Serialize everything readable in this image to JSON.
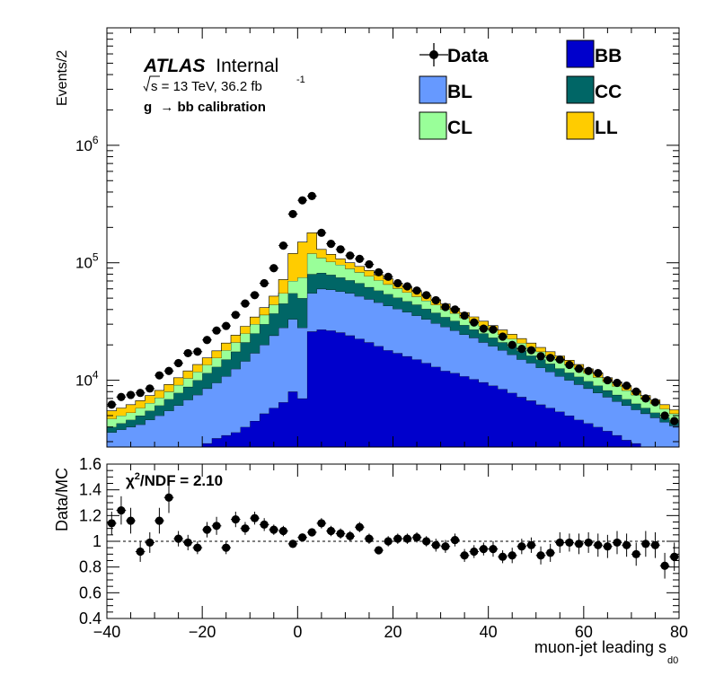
{
  "chart_data": [
    {
      "type": "area",
      "role": "main-stacked-histogram",
      "ylabel": "Events/2",
      "log_scale_y": true,
      "xlim": [
        -40,
        80
      ],
      "ylim": [
        2700,
        10000000
      ],
      "y_ticks": [
        {
          "value": 10000,
          "label_base": "10",
          "label_exp": "4"
        },
        {
          "value": 100000,
          "label_base": "10",
          "label_exp": "5"
        },
        {
          "value": 1000000,
          "label_base": "10",
          "label_exp": "6"
        }
      ],
      "annotations": {
        "brand": "ATLAS",
        "status": "Internal",
        "energy_sqrt": "s",
        "energy_text": " = 13 TeV, 36.2 fb",
        "lumi_exp": "-1",
        "selection_prefix": "g",
        "selection_arrow": "→",
        "selection_suffix": " bb calibration"
      },
      "legend_placement": "top-right",
      "legend": [
        {
          "key": "data",
          "label": "Data",
          "color": "#000000",
          "marker": "point"
        },
        {
          "key": "BB",
          "label": "BB",
          "color": "#0000cc",
          "marker": "box"
        },
        {
          "key": "BL",
          "label": "BL",
          "color": "#6699ff",
          "marker": "box"
        },
        {
          "key": "CC",
          "label": "CC",
          "color": "#006666",
          "marker": "box"
        },
        {
          "key": "CL",
          "label": "CL",
          "color": "#99ff99",
          "marker": "box"
        },
        {
          "key": "LL",
          "label": "LL",
          "color": "#ffcc00",
          "marker": "box"
        }
      ],
      "bin_width": 2,
      "bin_edges_x": [
        -40,
        -38,
        -36,
        -34,
        -32,
        -30,
        -28,
        -26,
        -24,
        -22,
        -20,
        -18,
        -16,
        -14,
        -12,
        -10,
        -8,
        -6,
        -4,
        -2,
        0,
        2,
        4,
        6,
        8,
        10,
        12,
        14,
        16,
        18,
        20,
        22,
        24,
        26,
        28,
        30,
        32,
        34,
        36,
        38,
        40,
        42,
        44,
        46,
        48,
        50,
        52,
        54,
        56,
        58,
        60,
        62,
        64,
        66,
        68,
        70,
        72,
        74,
        76,
        78,
        80
      ],
      "stack_order_bottom_to_top": [
        "BB",
        "BL",
        "CC",
        "CL",
        "LL"
      ],
      "stack_cumulative_tops": {
        "BB": [
          0,
          0,
          0,
          0,
          0,
          0,
          0,
          0,
          0,
          2700,
          2900,
          3200,
          3400,
          3600,
          4000,
          4500,
          5200,
          5800,
          6500,
          8000,
          7000,
          26000,
          27000,
          26500,
          25500,
          24000,
          22500,
          21000,
          19500,
          18000,
          17000,
          16000,
          15000,
          14000,
          13000,
          12000,
          11500,
          10800,
          10200,
          9600,
          9000,
          8400,
          7800,
          7200,
          6700,
          6200,
          5800,
          5400,
          5000,
          4600,
          4300,
          4000,
          3700,
          3400,
          3100,
          2900,
          0,
          0,
          0,
          0
        ],
        "BL": [
          3600,
          3800,
          4000,
          4200,
          4600,
          5000,
          5500,
          6100,
          6800,
          7500,
          8500,
          9500,
          10800,
          12500,
          14500,
          17000,
          20000,
          24000,
          28000,
          33000,
          28000,
          55000,
          60000,
          59000,
          57000,
          55000,
          52000,
          49000,
          46000,
          43000,
          40500,
          38000,
          35500,
          33000,
          30500,
          28500,
          26500,
          24500,
          23000,
          21000,
          19500,
          18000,
          16500,
          15000,
          14000,
          12800,
          11800,
          10800,
          10000,
          9200,
          8500,
          7800,
          7200,
          6600,
          6100,
          5600,
          5200,
          4800,
          4400,
          4100
        ],
        "CC": [
          4000,
          4300,
          4600,
          5000,
          5500,
          6100,
          6900,
          7800,
          8800,
          10000,
          11500,
          13000,
          15000,
          17500,
          21000,
          25000,
          30000,
          37000,
          45000,
          55000,
          50000,
          80000,
          82000,
          79000,
          75000,
          71000,
          67000,
          62000,
          58000,
          54000,
          50500,
          47000,
          44000,
          40500,
          37500,
          34500,
          32000,
          29500,
          27000,
          25000,
          23000,
          21000,
          19500,
          17800,
          16200,
          15000,
          13800,
          12600,
          11600,
          10700,
          9800,
          9000,
          8200,
          7500,
          6900,
          6300,
          5800,
          5300,
          4800,
          4400
        ],
        "CL": [
          4700,
          5000,
          5300,
          5800,
          6400,
          7100,
          8000,
          9100,
          10400,
          11800,
          13500,
          15500,
          18000,
          21000,
          25000,
          30000,
          36000,
          44000,
          55000,
          70000,
          75000,
          120000,
          110000,
          102000,
          96000,
          89000,
          83000,
          77000,
          71000,
          65500,
          60500,
          56000,
          51500,
          47500,
          43800,
          40300,
          37100,
          34100,
          31400,
          28900,
          26600,
          24500,
          22500,
          20700,
          19000,
          17500,
          16100,
          14800,
          13600,
          12500,
          11500,
          10600,
          9700,
          8900,
          8200,
          7500,
          6900,
          6300,
          5700,
          5200
        ],
        "LL": [
          5500,
          5800,
          6200,
          6700,
          7400,
          8200,
          9200,
          10500,
          12000,
          13600,
          15500,
          17800,
          20700,
          24200,
          28800,
          34500,
          41500,
          52000,
          72000,
          120000,
          150000,
          180000,
          130000,
          118000,
          108000,
          100000,
          93000,
          86000,
          79000,
          73000,
          67000,
          62000,
          57000,
          52500,
          48500,
          44600,
          41000,
          37700,
          34600,
          31800,
          29200,
          26800,
          24600,
          22600,
          20700,
          19000,
          17500,
          16100,
          14800,
          13600,
          12500,
          11500,
          10500,
          9700,
          8900,
          8100,
          7400,
          6800,
          6200,
          5600
        ]
      },
      "data_points_x": [
        -39,
        -37,
        -35,
        -33,
        -31,
        -29,
        -27,
        -25,
        -23,
        -21,
        -19,
        -17,
        -15,
        -13,
        -11,
        -9,
        -7,
        -5,
        -3,
        -1,
        1,
        3,
        5,
        7,
        9,
        11,
        13,
        15,
        17,
        19,
        21,
        23,
        25,
        27,
        29,
        31,
        33,
        35,
        37,
        39,
        41,
        43,
        45,
        47,
        49,
        51,
        53,
        55,
        57,
        59,
        61,
        63,
        65,
        67,
        69,
        71,
        73,
        75,
        77,
        79
      ],
      "data_points_y": [
        6200,
        7200,
        7500,
        7800,
        8500,
        11000,
        12000,
        14000,
        17000,
        17500,
        22000,
        26500,
        29000,
        36000,
        45000,
        53000,
        67000,
        90000,
        140000,
        260000,
        340000,
        370000,
        180000,
        145000,
        130000,
        115000,
        108000,
        97000,
        83000,
        76000,
        67000,
        63000,
        58000,
        53000,
        48000,
        42000,
        40000,
        35500,
        31000,
        27500,
        27000,
        23500,
        20000,
        18500,
        18000,
        16000,
        15500,
        15000,
        13500,
        12500,
        12000,
        11500,
        10000,
        9500,
        9000,
        8000,
        7000,
        6500,
        5000,
        4500
      ]
    },
    {
      "type": "scatter",
      "role": "ratio-panel",
      "ylabel": "Data/MC",
      "xlabel_main": "muon-jet leading s",
      "xlabel_sub": "d0",
      "xlim": [
        -40,
        80
      ],
      "ylim": [
        0.4,
        1.6
      ],
      "x_ticks": [
        -40,
        -20,
        0,
        20,
        40,
        60,
        80
      ],
      "x_tick_labels": [
        "−40",
        "−20",
        "0",
        "20",
        "40",
        "60",
        "80"
      ],
      "y_ticks": [
        0.4,
        0.6,
        0.8,
        1.0,
        1.2,
        1.4,
        1.6
      ],
      "y_tick_labels": [
        "0.4",
        "0.6",
        "0.8",
        "1",
        "1.2",
        "1.4",
        "1.6"
      ],
      "reference_line_y": 1.0,
      "chi2_symbol": "χ",
      "chi2_power": "2",
      "chi2_text": "/NDF = 2.10",
      "x": [
        -39,
        -37,
        -35,
        -33,
        -31,
        -29,
        -27,
        -25,
        -23,
        -21,
        -19,
        -17,
        -15,
        -13,
        -11,
        -9,
        -7,
        -5,
        -3,
        -1,
        1,
        3,
        5,
        7,
        9,
        11,
        13,
        15,
        17,
        19,
        21,
        23,
        25,
        27,
        29,
        31,
        33,
        35,
        37,
        39,
        41,
        43,
        45,
        47,
        49,
        51,
        53,
        55,
        57,
        59,
        61,
        63,
        65,
        67,
        69,
        71,
        73,
        75,
        77,
        79
      ],
      "y": [
        1.14,
        1.24,
        1.16,
        0.92,
        0.99,
        1.16,
        1.34,
        1.02,
        0.99,
        0.95,
        1.09,
        1.12,
        0.95,
        1.17,
        1.1,
        1.18,
        1.13,
        1.09,
        1.08,
        0.98,
        1.03,
        1.07,
        1.14,
        1.08,
        1.06,
        1.04,
        1.11,
        1.02,
        0.93,
        1.0,
        1.02,
        1.02,
        1.03,
        1.0,
        0.97,
        0.96,
        1.01,
        0.89,
        0.92,
        0.94,
        0.94,
        0.88,
        0.89,
        0.96,
        0.97,
        0.89,
        0.91,
        0.99,
        0.99,
        0.98,
        0.99,
        0.97,
        0.96,
        0.99,
        0.97,
        0.9,
        0.98,
        0.97,
        0.81,
        0.88
      ],
      "err": [
        0.09,
        0.11,
        0.1,
        0.08,
        0.08,
        0.1,
        0.12,
        0.06,
        0.06,
        0.05,
        0.06,
        0.07,
        0.05,
        0.06,
        0.05,
        0.05,
        0.05,
        0.04,
        0.04,
        0.03,
        0.02,
        0.02,
        0.04,
        0.04,
        0.04,
        0.04,
        0.04,
        0.04,
        0.03,
        0.04,
        0.04,
        0.04,
        0.04,
        0.04,
        0.05,
        0.05,
        0.05,
        0.05,
        0.05,
        0.05,
        0.06,
        0.05,
        0.06,
        0.06,
        0.06,
        0.07,
        0.07,
        0.08,
        0.07,
        0.08,
        0.08,
        0.09,
        0.09,
        0.09,
        0.09,
        0.09,
        0.1,
        0.1,
        0.1,
        0.11
      ]
    }
  ]
}
